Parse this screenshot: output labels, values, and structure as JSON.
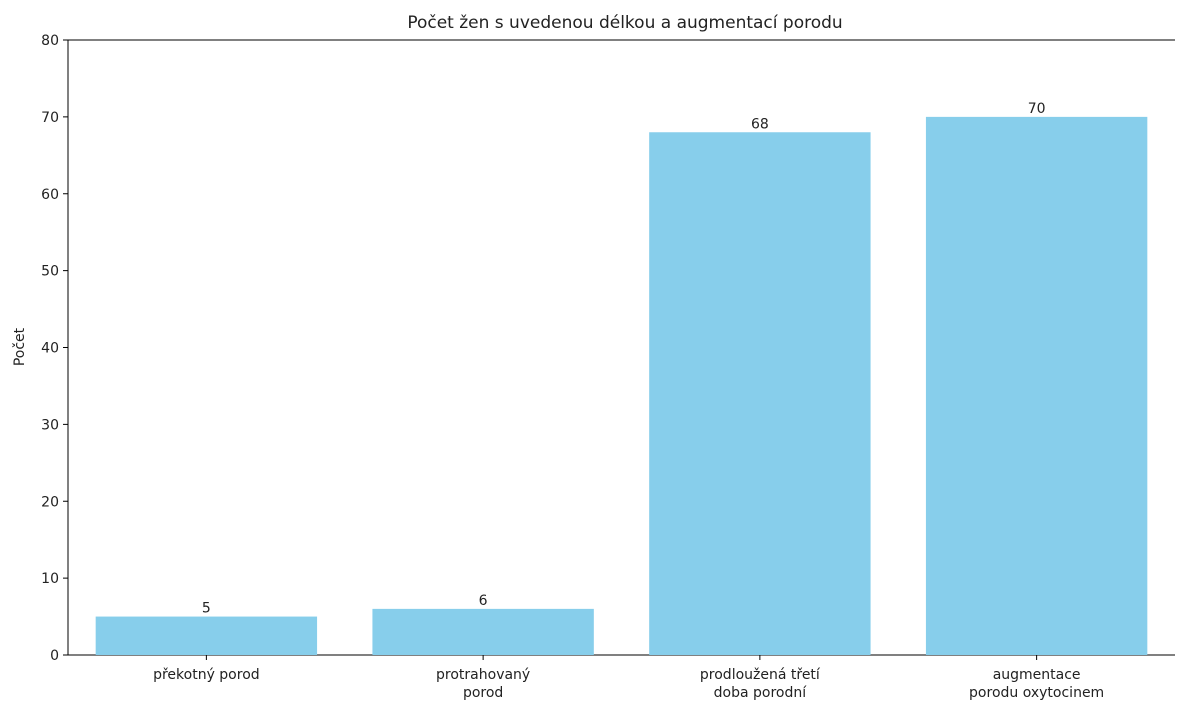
{
  "chart_data": {
    "type": "bar",
    "title": "Počet žen s uvedenou délkou a augmentací porodu",
    "xlabel": "",
    "ylabel": "Počet",
    "categories": [
      [
        "překotný porod"
      ],
      [
        "protrahovaný",
        "porod"
      ],
      [
        "prodloužená třetí",
        "doba porodní"
      ],
      [
        "augmentace",
        "porodu oxytocinem"
      ]
    ],
    "values": [
      5,
      6,
      68,
      70
    ],
    "data_labels": [
      "5",
      "6",
      "68",
      "70"
    ],
    "ylim": [
      0,
      80
    ],
    "yticks": [
      0,
      10,
      20,
      30,
      40,
      50,
      60,
      70,
      80
    ],
    "bar_color": "#87CEEB",
    "grid": false,
    "legend": null
  }
}
